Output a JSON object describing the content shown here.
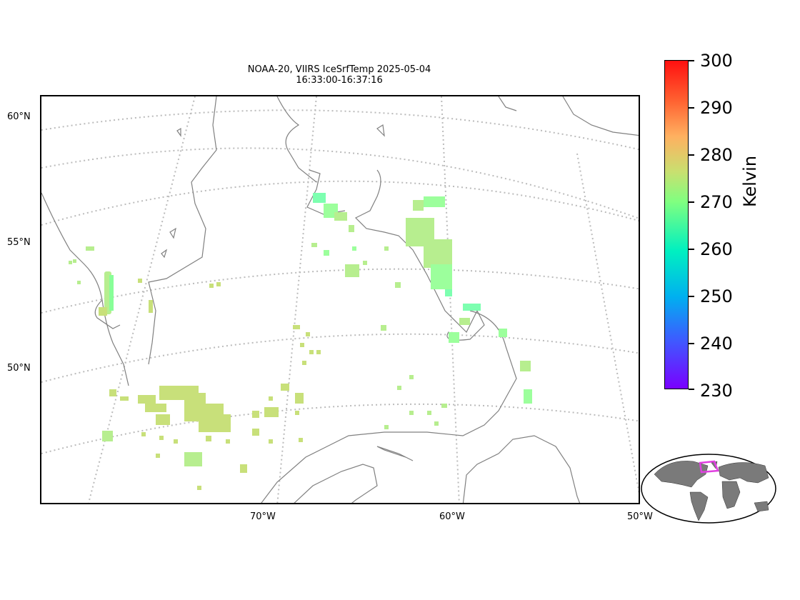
{
  "title_line1": "NOAA-20, VIIRS IceSrfTemp 2025-05-04",
  "title_line2": "16:33:00-16:37:16",
  "lat_labels": [
    "60°N",
    "55°N",
    "50°N"
  ],
  "lon_labels": [
    "70°W",
    "60°W",
    "50°W"
  ],
  "colorbar": {
    "label": "Kelvin",
    "ticks": [
      "300",
      "290",
      "280",
      "270",
      "260",
      "250",
      "240",
      "230"
    ],
    "min": 230,
    "max": 300
  },
  "colors": {
    "coastline": "#808080",
    "gridline": "#bbbbbb",
    "data_typical": "#b7ee8f",
    "data_cold": "#7dffb0",
    "inset_region": "#e040e0"
  }
}
